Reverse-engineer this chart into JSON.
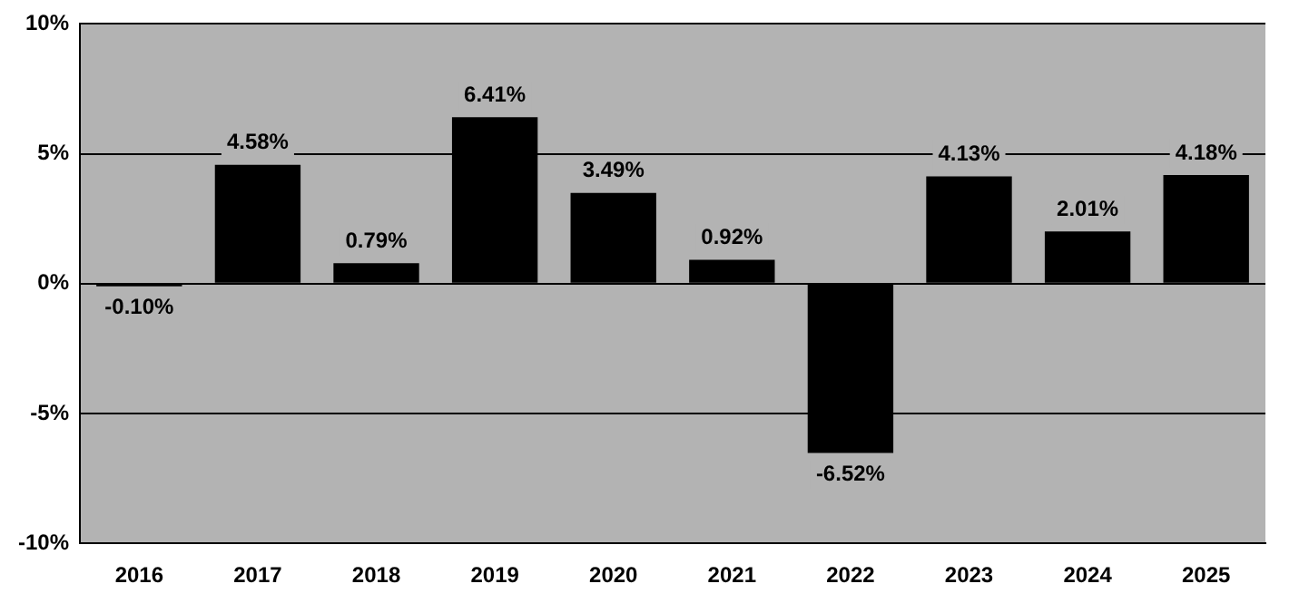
{
  "chart_data": {
    "type": "bar",
    "categories": [
      "2016",
      "2017",
      "2018",
      "2019",
      "2020",
      "2021",
      "2022",
      "2023",
      "2024",
      "2025"
    ],
    "values": [
      -0.1,
      4.58,
      0.79,
      6.41,
      3.49,
      0.92,
      -6.52,
      4.13,
      2.01,
      4.18
    ],
    "value_labels": [
      "-0.10%",
      "4.58%",
      "0.79%",
      "6.41%",
      "3.49%",
      "0.92%",
      "-6.52%",
      "4.13%",
      "2.01%",
      "4.18%"
    ],
    "color": "#000000",
    "ylim": [
      -10,
      10
    ],
    "yticks": [
      {
        "value": -10,
        "label": "-10%"
      },
      {
        "value": -5,
        "label": "-5%"
      },
      {
        "value": 0,
        "label": "0%"
      },
      {
        "value": 5,
        "label": "5%"
      },
      {
        "value": 10,
        "label": "10%"
      }
    ],
    "grid": "y",
    "legend": false
  }
}
